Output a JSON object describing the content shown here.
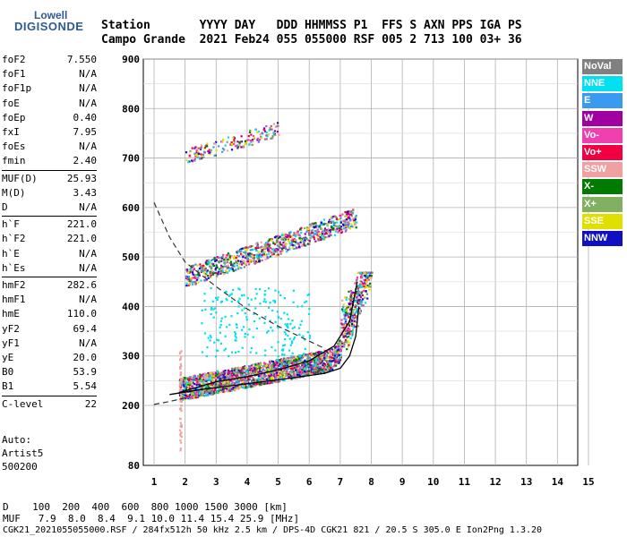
{
  "logo": {
    "line1": "Lowell",
    "line2": "DIGISONDE"
  },
  "header": {
    "row1": "Station       YYYY DAY   DDD HHMMSS P1  FFS S AXN PPS IGA PS",
    "row2": "Campo Grande  2021 Feb24 055 055000 RSF 005 2 713 100 03+ 36"
  },
  "params": [
    {
      "group": [
        [
          "foF2",
          "7.550"
        ],
        [
          "foF1",
          "N/A"
        ],
        [
          "foF1p",
          "N/A"
        ],
        [
          "foE",
          "N/A"
        ],
        [
          "foEp",
          "0.40"
        ],
        [
          "fxI",
          "7.95"
        ],
        [
          "foEs",
          "N/A"
        ],
        [
          "fmin",
          "2.40"
        ]
      ]
    },
    {
      "group": [
        [
          "MUF(D)",
          "25.93"
        ],
        [
          "M(D)",
          "3.43"
        ],
        [
          "D",
          "N/A"
        ]
      ]
    },
    {
      "group": [
        [
          "h`F",
          "221.0"
        ],
        [
          "h`F2",
          "221.0"
        ],
        [
          "h`E",
          "N/A"
        ],
        [
          "h`Es",
          "N/A"
        ]
      ]
    },
    {
      "group": [
        [
          "hmF2",
          "282.6"
        ],
        [
          "hmF1",
          "N/A"
        ],
        [
          "hmE",
          "110.0"
        ],
        [
          "yF2",
          "69.4"
        ],
        [
          "yF1",
          "N/A"
        ],
        [
          "yE",
          "20.0"
        ],
        [
          "B0",
          "53.9"
        ],
        [
          "B1",
          "5.54"
        ]
      ]
    },
    {
      "group": [
        [
          "C-level",
          "22"
        ]
      ]
    }
  ],
  "auto": [
    "Auto:",
    "Artist5",
    "500200"
  ],
  "legend": [
    {
      "label": "NoVal",
      "bg": "#808080",
      "fg": "#ffffff"
    },
    {
      "label": "NNE",
      "bg": "#00e0f0",
      "fg": "#ffffff"
    },
    {
      "label": "E",
      "bg": "#3a9af0",
      "fg": "#ffffff"
    },
    {
      "label": "W",
      "bg": "#a000a0",
      "fg": "#ffffff"
    },
    {
      "label": "Vo-",
      "bg": "#f040b0",
      "fg": "#ffffff"
    },
    {
      "label": "Vo+",
      "bg": "#f00040",
      "fg": "#ffffff"
    },
    {
      "label": "SSW",
      "bg": "#f0a0a0",
      "fg": "#ffffff"
    },
    {
      "label": "X-",
      "bg": "#007a00",
      "fg": "#ffffff"
    },
    {
      "label": "X+",
      "bg": "#80b060",
      "fg": "#ffffff"
    },
    {
      "label": "SSE",
      "bg": "#e0e000",
      "fg": "#ffffff"
    },
    {
      "label": "NNW",
      "bg": "#1010c0",
      "fg": "#ffffff"
    }
  ],
  "bottom": {
    "row1": "D    100  200  400  600  800 1000 1500 3000 [km]",
    "row2": "MUF   7.9  8.0  8.4  9.1 10.0 11.4 15.4 25.9 [MHz]",
    "row3": "CGK21_2021055055000.RSF / 284fx512h 50 kHz 2.5 km / DPS-4D CGK21 821 / 20.5 S 305.0 E Ion2Png 1.3.20"
  },
  "chart_data": {
    "type": "scatter",
    "xlim": [
      1,
      15
    ],
    "ylim": [
      80,
      900
    ],
    "x_ticks": [
      1,
      2,
      3,
      4,
      5,
      6,
      7,
      8,
      9,
      10,
      11,
      12,
      13,
      14,
      15
    ],
    "y_ticks": [
      80,
      200,
      300,
      400,
      500,
      600,
      700,
      800,
      900
    ],
    "grid": true,
    "legend_position": "right",
    "profile_curve": [
      [
        1.5,
        222
      ],
      [
        2.5,
        232
      ],
      [
        3.5,
        240
      ],
      [
        4.5,
        248
      ],
      [
        5.5,
        256
      ],
      [
        6.5,
        265
      ],
      [
        7.0,
        275
      ],
      [
        7.3,
        300
      ],
      [
        7.5,
        340
      ],
      [
        7.6,
        400
      ]
    ],
    "trace_curve": [
      [
        1.8,
        226
      ],
      [
        3.0,
        248
      ],
      [
        4.0,
        258
      ],
      [
        5.0,
        272
      ],
      [
        6.0,
        290
      ],
      [
        6.8,
        320
      ],
      [
        7.3,
        370
      ],
      [
        7.55,
        450
      ]
    ],
    "dashed_curve": [
      [
        1.0,
        610
      ],
      [
        1.5,
        540
      ],
      [
        2.0,
        490
      ],
      [
        3.0,
        440
      ],
      [
        4.0,
        395
      ],
      [
        5.0,
        360
      ],
      [
        6.0,
        330
      ],
      [
        6.5,
        315
      ]
    ],
    "dashed_lower": [
      [
        1.0,
        202
      ],
      [
        1.5,
        208
      ],
      [
        2.0,
        215
      ]
    ],
    "trace_regions": [
      {
        "x_range": [
          1.8,
          8.0
        ],
        "y_range": [
          220,
          460
        ],
        "note": "F-layer O/X traces"
      },
      {
        "x_range": [
          2.0,
          7.5
        ],
        "y_range": [
          450,
          620
        ],
        "note": "second-hop echoes"
      },
      {
        "x_range": [
          2.0,
          5.5
        ],
        "y_range": [
          690,
          790
        ],
        "note": "third-hop echoes"
      }
    ]
  }
}
